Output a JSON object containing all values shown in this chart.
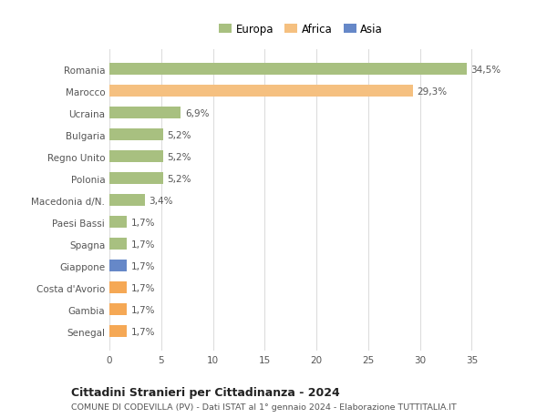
{
  "categories": [
    "Romania",
    "Marocco",
    "Ucraina",
    "Bulgaria",
    "Regno Unito",
    "Polonia",
    "Macedonia d/N.",
    "Paesi Bassi",
    "Spagna",
    "Giappone",
    "Costa d'Avorio",
    "Gambia",
    "Senegal"
  ],
  "values": [
    34.5,
    29.3,
    6.9,
    5.2,
    5.2,
    5.2,
    3.4,
    1.7,
    1.7,
    1.7,
    1.7,
    1.7,
    1.7
  ],
  "labels": [
    "34,5%",
    "29,3%",
    "6,9%",
    "5,2%",
    "5,2%",
    "5,2%",
    "3,4%",
    "1,7%",
    "1,7%",
    "1,7%",
    "1,7%",
    "1,7%",
    "1,7%"
  ],
  "colors": [
    "#a8c080",
    "#f5c080",
    "#a8c080",
    "#a8c080",
    "#a8c080",
    "#a8c080",
    "#a8c080",
    "#a8c080",
    "#a8c080",
    "#6688c8",
    "#f5a855",
    "#f5a855",
    "#f5a855"
  ],
  "legend_labels": [
    "Europa",
    "Africa",
    "Asia"
  ],
  "legend_colors": [
    "#a8c080",
    "#f5c080",
    "#6688c8"
  ],
  "xlim": [
    0,
    37
  ],
  "xticks": [
    0,
    5,
    10,
    15,
    20,
    25,
    30,
    35
  ],
  "title": "Cittadini Stranieri per Cittadinanza - 2024",
  "subtitle": "COMUNE DI CODEVILLA (PV) - Dati ISTAT al 1° gennaio 2024 - Elaborazione TUTTITALIA.IT",
  "background_color": "#ffffff",
  "bar_height": 0.55,
  "label_fontsize": 7.5,
  "tick_fontsize": 7.5,
  "legend_fontsize": 8.5
}
